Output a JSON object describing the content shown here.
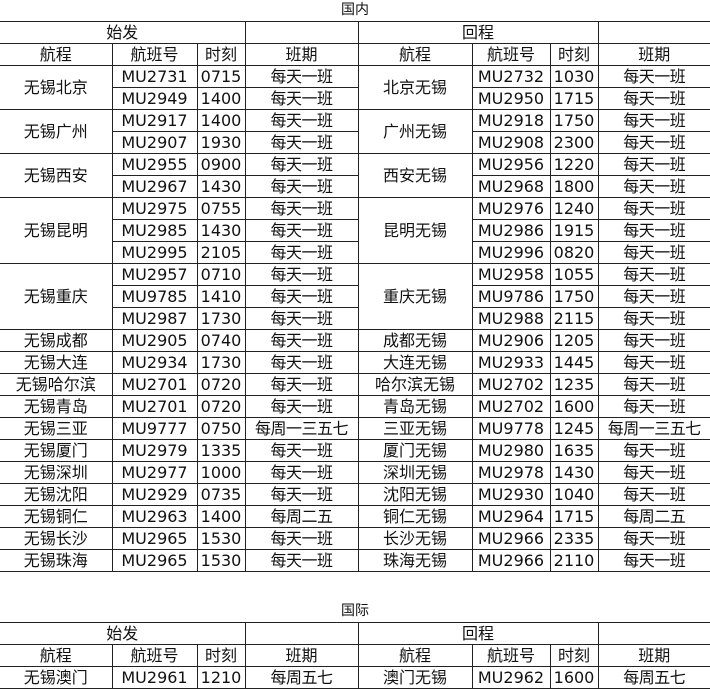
{
  "domestic": {
    "title": "国内",
    "outbound_label": "始发",
    "return_label": "回程",
    "headers": [
      "航程",
      "航班号",
      "时刻",
      "班期",
      "航程",
      "航班号",
      "时刻",
      "班期"
    ],
    "groups": [
      {
        "out_route": "无锡北京",
        "ret_route": "北京无锡",
        "rows": [
          [
            "MU2731",
            "0715",
            "每天一班",
            "MU2732",
            "1030",
            "每天一班"
          ],
          [
            "MU2949",
            "1400",
            "每天一班",
            "MU2950",
            "1715",
            "每天一班"
          ]
        ]
      },
      {
        "out_route": "无锡广州",
        "ret_route": "广州无锡",
        "rows": [
          [
            "MU2917",
            "1400",
            "每天一班",
            "MU2918",
            "1750",
            "每天一班"
          ],
          [
            "MU2907",
            "1930",
            "每天一班",
            "MU2908",
            "2300",
            "每天一班"
          ]
        ]
      },
      {
        "out_route": "无锡西安",
        "ret_route": "西安无锡",
        "rows": [
          [
            "MU2955",
            "0900",
            "每天一班",
            "MU2956",
            "1220",
            "每天一班"
          ],
          [
            "MU2967",
            "1430",
            "每天一班",
            "MU2968",
            "1800",
            "每天一班"
          ]
        ]
      },
      {
        "out_route": "无锡昆明",
        "ret_route": "昆明无锡",
        "rows": [
          [
            "MU2975",
            "0755",
            "每天一班",
            "MU2976",
            "1240",
            "每天一班"
          ],
          [
            "MU2985",
            "1430",
            "每天一班",
            "MU2986",
            "1915",
            "每天一班"
          ],
          [
            "MU2995",
            "2105",
            "每天一班",
            "MU2996",
            "0820",
            "每天一班"
          ]
        ]
      },
      {
        "out_route": "无锡重庆",
        "ret_route": "重庆无锡",
        "rows": [
          [
            "MU2957",
            "0710",
            "每天一班",
            "MU2958",
            "1055",
            "每天一班"
          ],
          [
            "MU9785",
            "1410",
            "每天一班",
            "MU9786",
            "1750",
            "每天一班"
          ],
          [
            "MU2987",
            "1730",
            "每天一班",
            "MU2988",
            "2115",
            "每天一班"
          ]
        ]
      },
      {
        "out_route": "无锡成都",
        "ret_route": "成都无锡",
        "rows": [
          [
            "MU2905",
            "0740",
            "每天一班",
            "MU2906",
            "1205",
            "每天一班"
          ]
        ]
      },
      {
        "out_route": "无锡大连",
        "ret_route": "大连无锡",
        "rows": [
          [
            "MU2934",
            "1730",
            "每天一班",
            "MU2933",
            "1445",
            "每天一班"
          ]
        ]
      },
      {
        "out_route": "无锡哈尔滨",
        "ret_route": "哈尔滨无锡",
        "rows": [
          [
            "MU2701",
            "0720",
            "每天一班",
            "MU2702",
            "1235",
            "每天一班"
          ]
        ]
      },
      {
        "out_route": "无锡青岛",
        "ret_route": "青岛无锡",
        "rows": [
          [
            "MU2701",
            "0720",
            "每天一班",
            "MU2702",
            "1600",
            "每天一班"
          ]
        ]
      },
      {
        "out_route": "无锡三亚",
        "ret_route": "三亚无锡",
        "rows": [
          [
            "MU9777",
            "0750",
            "每周一三五七",
            "MU9778",
            "1245",
            "每周一三五七"
          ]
        ]
      },
      {
        "out_route": "无锡厦门",
        "ret_route": "厦门无锡",
        "rows": [
          [
            "MU2979",
            "1335",
            "每天一班",
            "MU2980",
            "1635",
            "每天一班"
          ]
        ]
      },
      {
        "out_route": "无锡深圳",
        "ret_route": "深圳无锡",
        "rows": [
          [
            "MU2977",
            "1000",
            "每天一班",
            "MU2978",
            "1430",
            "每天一班"
          ]
        ]
      },
      {
        "out_route": "无锡沈阳",
        "ret_route": "沈阳无锡",
        "rows": [
          [
            "MU2929",
            "0735",
            "每天一班",
            "MU2930",
            "1040",
            "每天一班"
          ]
        ]
      },
      {
        "out_route": "无锡铜仁",
        "ret_route": "铜仁无锡",
        "rows": [
          [
            "MU2963",
            "1400",
            "每周二五",
            "MU2964",
            "1715",
            "每周二五"
          ]
        ]
      },
      {
        "out_route": "无锡长沙",
        "ret_route": "长沙无锡",
        "rows": [
          [
            "MU2965",
            "1530",
            "每天一班",
            "MU2966",
            "2335",
            "每天一班"
          ]
        ]
      },
      {
        "out_route": "无锡珠海",
        "ret_route": "珠海无锡",
        "rows": [
          [
            "MU2965",
            "1530",
            "每天一班",
            "MU2966",
            "2110",
            "每天一班"
          ]
        ]
      }
    ]
  },
  "international": {
    "title": "国际",
    "outbound_label": "始发",
    "return_label": "回程",
    "headers": [
      "航程",
      "航班号",
      "时刻",
      "班期",
      "航程",
      "航班号",
      "时刻",
      "班期"
    ],
    "groups": [
      {
        "out_route": "无锡澳门",
        "ret_route": "澳门无锡",
        "rows": [
          [
            "MU2961",
            "1210",
            "每周五七",
            "MU2962",
            "1600",
            "每周五七"
          ]
        ]
      }
    ]
  }
}
